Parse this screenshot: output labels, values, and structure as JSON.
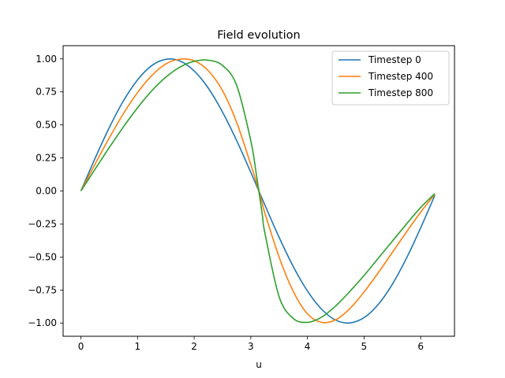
{
  "chart_data": {
    "type": "line",
    "title": "Field evolution",
    "xlabel": "u",
    "ylabel": "",
    "xlim": [
      -0.3142,
      6.5973
    ],
    "ylim": [
      -1.1,
      1.1
    ],
    "xticks": [
      0,
      1,
      2,
      3,
      4,
      5,
      6
    ],
    "xtick_labels": [
      "0",
      "1",
      "2",
      "3",
      "4",
      "5",
      "6"
    ],
    "yticks": [
      -1.0,
      -0.75,
      -0.5,
      -0.25,
      0.0,
      0.25,
      0.5,
      0.75,
      1.0
    ],
    "ytick_labels": [
      "−1.00",
      "−0.75",
      "−0.50",
      "−0.25",
      "0.00",
      "0.25",
      "0.50",
      "0.75",
      "1.00"
    ],
    "grid": false,
    "legend_position": "top-right",
    "x": [
      0.0,
      0.25,
      0.5,
      0.75,
      1.0,
      1.25,
      1.5,
      1.75,
      2.0,
      2.25,
      2.5,
      2.75,
      3.0,
      3.1,
      3.2,
      3.25,
      3.5,
      3.75,
      4.0,
      4.25,
      4.5,
      4.75,
      5.0,
      5.25,
      5.5,
      5.75,
      6.0,
      6.25
    ],
    "series": [
      {
        "name": "Timestep 0",
        "color": "#1f77b4",
        "values": [
          0.0,
          0.247,
          0.479,
          0.682,
          0.841,
          0.949,
          0.997,
          0.984,
          0.909,
          0.778,
          0.598,
          0.382,
          0.141,
          0.042,
          -0.058,
          -0.108,
          -0.351,
          -0.572,
          -0.757,
          -0.895,
          -0.978,
          -0.999,
          -0.959,
          -0.859,
          -0.706,
          -0.508,
          -0.279,
          -0.033
        ]
      },
      {
        "name": "Timestep 400",
        "color": "#ff7f0e",
        "values": [
          0.0,
          0.204,
          0.401,
          0.585,
          0.745,
          0.874,
          0.962,
          0.998,
          0.986,
          0.91,
          0.76,
          0.52,
          0.2,
          0.065,
          -0.09,
          -0.17,
          -0.5,
          -0.76,
          -0.93,
          -0.995,
          -0.975,
          -0.89,
          -0.765,
          -0.62,
          -0.465,
          -0.31,
          -0.16,
          -0.025
        ]
      },
      {
        "name": "Timestep 800",
        "color": "#2ca02c",
        "values": [
          0.0,
          0.165,
          0.328,
          0.485,
          0.63,
          0.758,
          0.862,
          0.938,
          0.982,
          0.99,
          0.95,
          0.8,
          0.38,
          0.12,
          -0.17,
          -0.32,
          -0.8,
          -0.965,
          -0.995,
          -0.955,
          -0.87,
          -0.76,
          -0.64,
          -0.51,
          -0.38,
          -0.25,
          -0.125,
          -0.02
        ]
      }
    ]
  }
}
